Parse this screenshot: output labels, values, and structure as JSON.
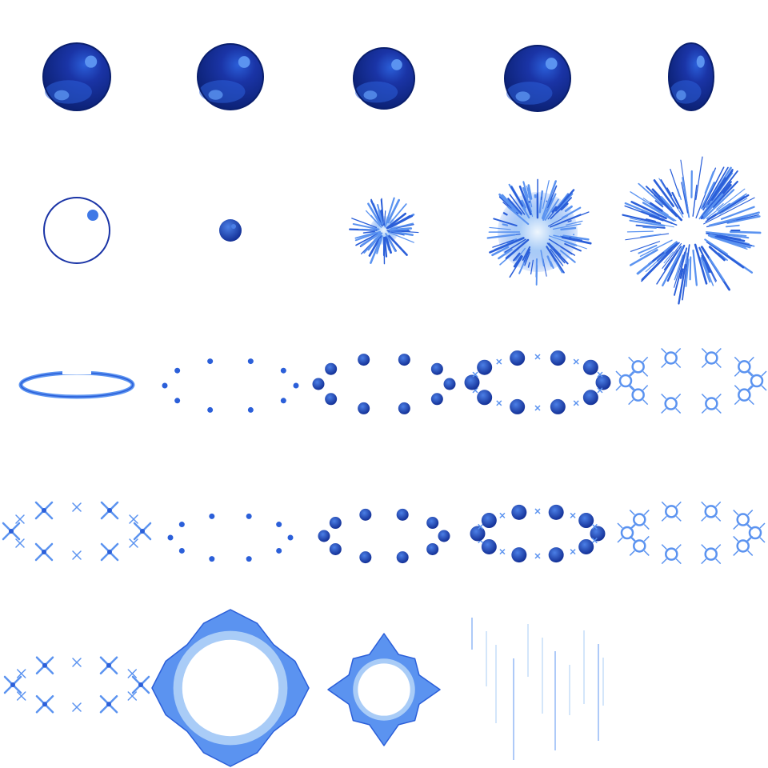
{
  "sheet": {
    "name": "blue-magic-orb-effect-spritesheet",
    "grid": {
      "columns": 5,
      "rows": 5
    },
    "palette": {
      "deep": "#0a1f6e",
      "dark": "#1a34a6",
      "mid": "#2b5fd9",
      "light": "#5b93f0",
      "pale": "#a9ccf7",
      "glow": "#dcecfb",
      "white": "#ffffff"
    },
    "frames": [
      {
        "row": 1,
        "col": 1,
        "kind": "orb"
      },
      {
        "row": 1,
        "col": 2,
        "kind": "orb"
      },
      {
        "row": 1,
        "col": 3,
        "kind": "orb"
      },
      {
        "row": 1,
        "col": 4,
        "kind": "orb"
      },
      {
        "row": 1,
        "col": 5,
        "kind": "orb-squashed"
      },
      {
        "row": 2,
        "col": 1,
        "kind": "ring-outline"
      },
      {
        "row": 2,
        "col": 2,
        "kind": "small-orb"
      },
      {
        "row": 2,
        "col": 3,
        "kind": "burst-small"
      },
      {
        "row": 2,
        "col": 4,
        "kind": "burst-large"
      },
      {
        "row": 2,
        "col": 5,
        "kind": "burst-scatter"
      },
      {
        "row": 3,
        "col": 1,
        "kind": "flat-ring"
      },
      {
        "row": 3,
        "col": 2,
        "kind": "dot-ring-small"
      },
      {
        "row": 3,
        "col": 3,
        "kind": "dot-ring-medium"
      },
      {
        "row": 3,
        "col": 4,
        "kind": "dot-ring-large"
      },
      {
        "row": 3,
        "col": 5,
        "kind": "sparkle-ring"
      },
      {
        "row": 4,
        "col": 1,
        "kind": "cross-sparkle-ring"
      },
      {
        "row": 4,
        "col": 2,
        "kind": "dot-ring-small"
      },
      {
        "row": 4,
        "col": 3,
        "kind": "dot-ring-medium"
      },
      {
        "row": 4,
        "col": 4,
        "kind": "dot-ring-large"
      },
      {
        "row": 4,
        "col": 5,
        "kind": "sparkle-ring"
      },
      {
        "row": 5,
        "col": 1,
        "kind": "cross-sparkle-ring"
      },
      {
        "row": 5,
        "col": 2,
        "kind": "star-flare-large"
      },
      {
        "row": 5,
        "col": 3,
        "kind": "star-flare-small"
      },
      {
        "row": 5,
        "col": 4,
        "kind": "fading-streaks"
      },
      {
        "row": 5,
        "col": 5,
        "kind": "empty"
      }
    ]
  }
}
